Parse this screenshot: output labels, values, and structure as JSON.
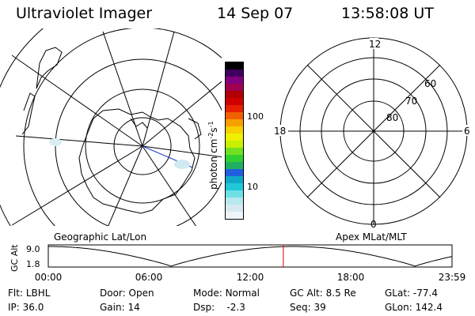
{
  "header": {
    "title": "Ultraviolet Imager",
    "date": "14 Sep 07",
    "time": "13:58:08 UT"
  },
  "colorbar": {
    "unit": "photon cm",
    "exp1": "-2",
    "mid": "s",
    "exp2": "-1",
    "ticks": [
      {
        "label": "100",
        "value": 100
      },
      {
        "label": "10",
        "value": 10
      }
    ],
    "colors": [
      "#eef4f8",
      "#d8e8f2",
      "#b8e8ee",
      "#6ee0e4",
      "#20c8d8",
      "#10a8c8",
      "#2060e0",
      "#20b060",
      "#30d030",
      "#70e020",
      "#c8f000",
      "#f0f000",
      "#f8d000",
      "#f8a000",
      "#f06000",
      "#e82000",
      "#d00000",
      "#b00000",
      "#a00050",
      "#800080",
      "#400060",
      "#000000"
    ]
  },
  "left_map": {
    "caption": "Geographic Lat/Lon"
  },
  "right_map": {
    "caption": "Apex MLat/MLT",
    "mlt_labels": {
      "top": "12",
      "left": "18",
      "right": "6",
      "bottom": "0"
    },
    "lat_labels": [
      "60",
      "70",
      "80"
    ]
  },
  "timeline": {
    "ylabel": "GC Alt",
    "ytick_top": "9.0",
    "ytick_bottom": "1.8",
    "xticks": [
      "00:00",
      "06:00",
      "12:00",
      "18:00",
      "23:59"
    ],
    "current_time_hours": 13.97,
    "marker_color": "#e00000"
  },
  "info": {
    "row1": [
      {
        "label": "Flt:",
        "value": "LBHL"
      },
      {
        "label": "Door:",
        "value": "Open"
      },
      {
        "label": "Mode:",
        "value": "Normal"
      },
      {
        "label": "GC Alt:",
        "value": "8.5 Re"
      },
      {
        "label": "GLat:",
        "value": "-77.4"
      }
    ],
    "row2": [
      {
        "label": "IP:",
        "value": "36.0"
      },
      {
        "label": "Gain:",
        "value": "14"
      },
      {
        "label": "Dsp:",
        "value": "-2.3"
      },
      {
        "label": "Seq:",
        "value": "39"
      },
      {
        "label": "GLon:",
        "value": "142.4"
      }
    ]
  }
}
